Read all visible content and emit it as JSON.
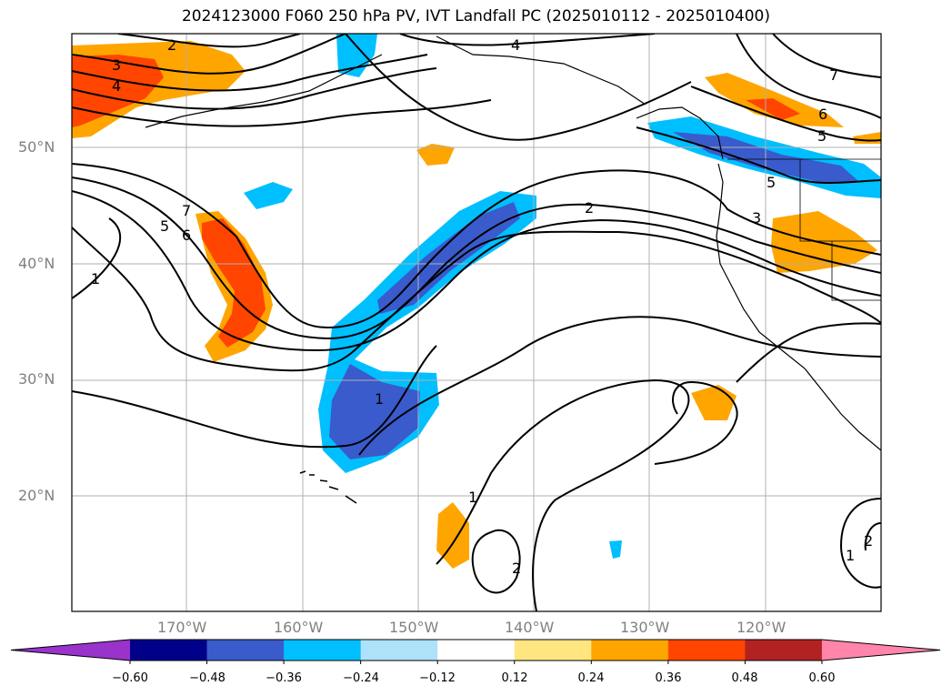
{
  "title": "2024123000 F060 250 hPa PV, IVT Landfall PC (2025010112 - 2025010400)",
  "lat_labels": [
    "50°N",
    "40°N",
    "30°N",
    "20°N"
  ],
  "lon_labels": [
    "170°W",
    "160°W",
    "150°W",
    "140°W",
    "130°W",
    "120°W"
  ],
  "colorbar": {
    "tick_labels": [
      "−0.60",
      "−0.48",
      "−0.36",
      "−0.24",
      "−0.12",
      "0.12",
      "0.24",
      "0.36",
      "0.48",
      "0.60"
    ],
    "colors": [
      "#9933cc",
      "#00008b",
      "#3a5bcc",
      "#00bfff",
      "#aee2fa",
      "#ffffff",
      "#ffe680",
      "#ffa500",
      "#ff4500",
      "#b22222",
      "#ff85aa"
    ]
  },
  "contour_labels": [
    "2",
    "3",
    "4",
    "4",
    "7",
    "6",
    "5",
    "5",
    "2",
    "3",
    "7",
    "5",
    "6",
    "1",
    "1",
    "1",
    "2",
    "1",
    "2"
  ]
}
